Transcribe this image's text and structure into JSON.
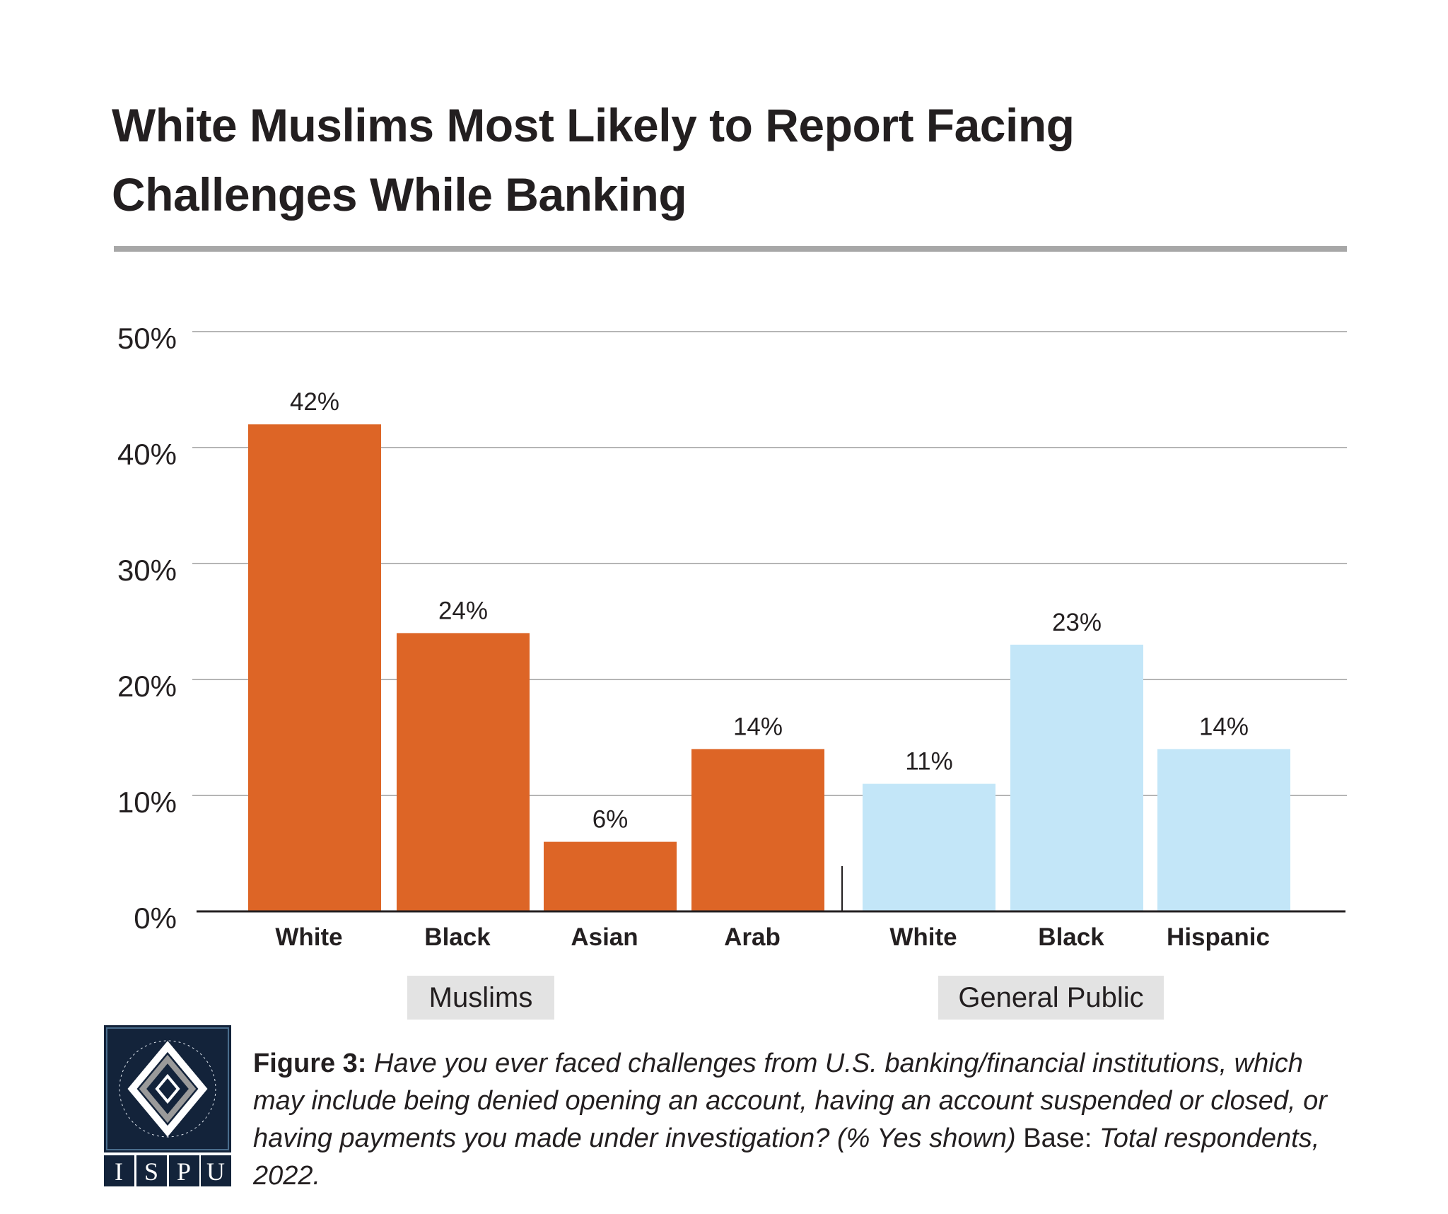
{
  "title_lines": [
    "White Muslims Most Likely to Report Facing",
    "Challenges While Banking"
  ],
  "colors": {
    "muslims": "#DD6526",
    "general_public": "#C3E6F8",
    "grid": "#b5b5b5",
    "rule": "#a7a7a7"
  },
  "chart_data": {
    "type": "bar",
    "title": "White Muslims Most Likely to Report Facing Challenges While Banking",
    "xlabel": "",
    "ylabel": "",
    "ylim": [
      0,
      50
    ],
    "yticks": [
      0,
      10,
      20,
      30,
      40,
      50
    ],
    "ytick_labels": [
      "0%",
      "10%",
      "20%",
      "30%",
      "40%",
      "50%"
    ],
    "grid": true,
    "groups": [
      {
        "name": "Muslims",
        "categories": [
          "White",
          "Black",
          "Asian",
          "Arab"
        ],
        "values": [
          42,
          24,
          6,
          14
        ],
        "labels": [
          "42%",
          "24%",
          "6%",
          "14%"
        ]
      },
      {
        "name": "General Public",
        "categories": [
          "White",
          "Black",
          "Hispanic"
        ],
        "values": [
          11,
          23,
          14
        ],
        "labels": [
          "11%",
          "23%",
          "14%"
        ]
      }
    ]
  },
  "caption": {
    "label": "Figure 3:",
    "question": "Have you ever faced challenges from U.S. banking/financial institutions, which may include being denied opening an account, having an account suspended or closed, or having payments you made under investigation? (% Yes shown)",
    "base": "Base:",
    "base_italic": "Total respondents, 2022."
  },
  "logo": {
    "text": "ISPU",
    "ring_text": "INSTITUTE FOR SOCIAL POLICY AND UNDERSTANDING"
  }
}
